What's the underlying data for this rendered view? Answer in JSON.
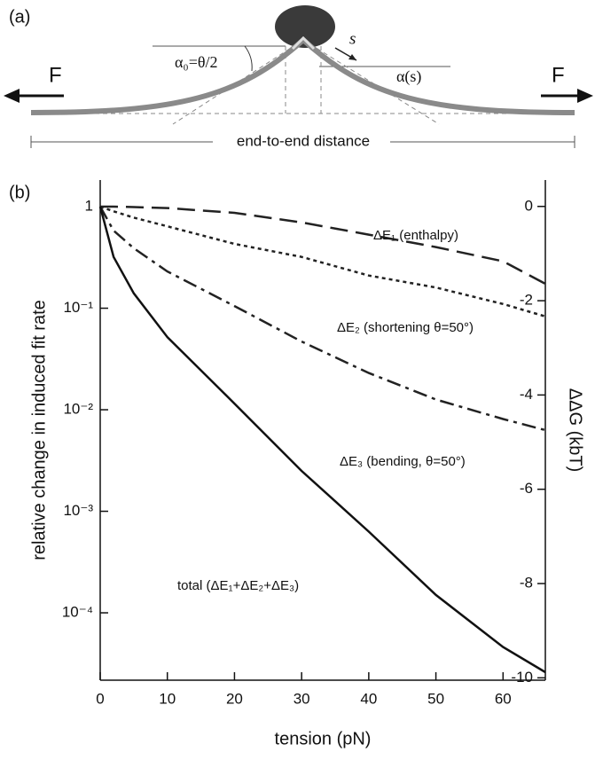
{
  "diagram": {
    "panel_label": "(a)",
    "force_left": "F",
    "force_right": "F",
    "angle_label": "α₀=θ/2",
    "arc_label": "s",
    "local_angle_label": "α(s)",
    "distance_label": "end-to-end distance"
  },
  "chart_data": {
    "type": "line",
    "panel_label": "(b)",
    "xlabel": "tension (pN)",
    "ylabel": "relative change in induced fit rate",
    "y2label": "ΔΔG (kbT)",
    "x": [
      0,
      2,
      5,
      10,
      20,
      30,
      40,
      50,
      60,
      66.3
    ],
    "series": [
      {
        "name": "ΔE₁ (enthalpy)",
        "color": "#222222",
        "linestyle": "dashed",
        "values": [
          1,
          1,
          0.99,
          0.97,
          0.87,
          0.7,
          0.53,
          0.4,
          0.29,
          0.174
        ]
      },
      {
        "name": "ΔE₂ (shortening θ=50°)",
        "color": "#222222",
        "linestyle": "dotted",
        "values": [
          1,
          0.9,
          0.78,
          0.64,
          0.43,
          0.32,
          0.21,
          0.16,
          0.11,
          0.083
        ]
      },
      {
        "name": "ΔE₃ (bending, θ=50°)",
        "color": "#222222",
        "linestyle": "dashdot",
        "values": [
          1,
          0.58,
          0.39,
          0.23,
          0.105,
          0.047,
          0.023,
          0.0126,
          0.0081,
          0.0063
        ]
      },
      {
        "name": "total (ΔE₁+ΔE₂+ΔE₃)",
        "color": "#111111",
        "linestyle": "solid",
        "values": [
          1,
          0.32,
          0.14,
          0.052,
          0.0115,
          0.0025,
          0.00063,
          0.00015,
          4.6e-05,
          2.6e-05
        ]
      }
    ],
    "xlim": [
      0,
      66.3
    ],
    "xticks": [
      0,
      10,
      20,
      30,
      40,
      50,
      60
    ],
    "ylim": [
      2.17e-05,
      1.83
    ],
    "ylog": true,
    "yticks": [
      1,
      {
        "value": 0.1,
        "label": "10⁻¹"
      },
      {
        "value": 0.01,
        "label": "10⁻²"
      },
      {
        "value": 0.001,
        "label": "10⁻³"
      },
      {
        "value": 0.0001,
        "label": "10⁻⁴"
      }
    ],
    "y2lim": [
      -10.05,
      0.56
    ],
    "y2ticks": [
      0,
      -2,
      -4,
      -6,
      -8,
      -10
    ],
    "grid": false
  }
}
